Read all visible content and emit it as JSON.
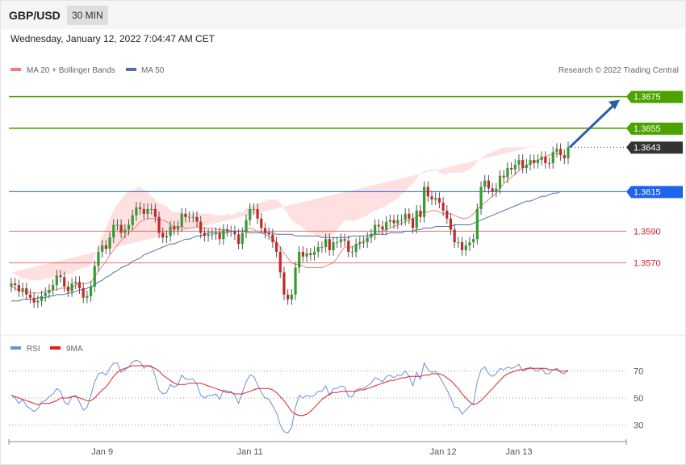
{
  "header": {
    "pair": "GBP/USD",
    "interval": "30 MIN"
  },
  "datetime": "Wednesday, January 12, 2022 7:04:47 AM CET",
  "legend": {
    "ma20": "MA 20 + Bollinger Bands",
    "ma50": "MA 50",
    "credit": "Research © 2022 Trading Central",
    "rsi": "RSI",
    "rsi_ma": "9MA"
  },
  "colors": {
    "target": "#4ca300",
    "last": "#333333",
    "pivot": "#1e64ea",
    "support": "#e05050",
    "band": "#ffe0e0",
    "ma20": "#f08080",
    "ma50": "#5470a8",
    "up": "#2f9e2f",
    "down": "#c62828",
    "rsi": "#6a8fdc",
    "rsi_ma": "#e02020",
    "arrow": "#2d5fa7"
  },
  "chart_data": [
    {
      "type": "candlestick",
      "title": "GBP/USD",
      "interval": "30 MIN",
      "y_range": [
        1.3527,
        1.3685
      ],
      "x_labels": [
        "Jan 9",
        "Jan 11",
        "Jan 12",
        "Jan 13"
      ],
      "levels": [
        {
          "value": 1.3675,
          "label": "1.3675",
          "kind": "target"
        },
        {
          "value": 1.3655,
          "label": "1.3655",
          "kind": "target"
        },
        {
          "value": 1.3643,
          "label": "1.3643",
          "kind": "last"
        },
        {
          "value": 1.3615,
          "label": "1.3615",
          "kind": "pivot"
        },
        {
          "value": 1.359,
          "label": "1.3590",
          "kind": "support"
        },
        {
          "value": 1.357,
          "label": "1.3570",
          "kind": "support"
        }
      ],
      "closes": [
        1.3557,
        1.3556,
        1.3552,
        1.3554,
        1.355,
        1.3548,
        1.3545,
        1.3546,
        1.3549,
        1.3551,
        1.3553,
        1.3556,
        1.3562,
        1.3561,
        1.3555,
        1.3552,
        1.3557,
        1.3558,
        1.3554,
        1.3548,
        1.3549,
        1.3555,
        1.3568,
        1.3577,
        1.3581,
        1.3579,
        1.3586,
        1.3594,
        1.3594,
        1.3589,
        1.3591,
        1.3594,
        1.36,
        1.3605,
        1.3604,
        1.3601,
        1.3604,
        1.3604,
        1.3599,
        1.3589,
        1.3586,
        1.3587,
        1.3593,
        1.3591,
        1.3593,
        1.3601,
        1.3599,
        1.3599,
        1.3599,
        1.3596,
        1.3589,
        1.3587,
        1.3588,
        1.3588,
        1.3589,
        1.3585,
        1.3591,
        1.359,
        1.359,
        1.3588,
        1.3582,
        1.3589,
        1.3597,
        1.3604,
        1.3604,
        1.3598,
        1.3592,
        1.3589,
        1.3588,
        1.3583,
        1.3577,
        1.3564,
        1.355,
        1.3547,
        1.355,
        1.3567,
        1.3577,
        1.3574,
        1.3576,
        1.3575,
        1.3577,
        1.358,
        1.358,
        1.3585,
        1.3578,
        1.3583,
        1.3583,
        1.3585,
        1.3584,
        1.3577,
        1.3577,
        1.3582,
        1.3583,
        1.3583,
        1.3586,
        1.3588,
        1.3594,
        1.3593,
        1.3591,
        1.3596,
        1.3597,
        1.3595,
        1.3597,
        1.3597,
        1.3601,
        1.3598,
        1.3592,
        1.3603,
        1.3599,
        1.3618,
        1.3612,
        1.361,
        1.3611,
        1.3608,
        1.3603,
        1.3598,
        1.3591,
        1.3583,
        1.3583,
        1.3578,
        1.3581,
        1.3583,
        1.3585,
        1.3604,
        1.3618,
        1.3622,
        1.3617,
        1.3615,
        1.3617,
        1.3625,
        1.3624,
        1.363,
        1.3629,
        1.3632,
        1.3635,
        1.363,
        1.3632,
        1.3635,
        1.3633,
        1.3635,
        1.3637,
        1.3633,
        1.3633,
        1.364,
        1.3642,
        1.3638,
        1.3636,
        1.3643
      ],
      "ma20": [
        1.3555,
        1.3554,
        1.3552,
        1.3552,
        1.3552,
        1.3551,
        1.3551,
        1.3551,
        1.3551,
        1.3552,
        1.3552,
        1.3553,
        1.3553,
        1.3554,
        1.3554,
        1.3554,
        1.3554,
        1.3556,
        1.3557,
        1.3557,
        1.3557,
        1.3558,
        1.3561,
        1.3565,
        1.3568,
        1.3571,
        1.3575,
        1.3578,
        1.3581,
        1.3584,
        1.3587,
        1.3589,
        1.3591,
        1.3593,
        1.3596,
        1.3597,
        1.3598,
        1.3598,
        1.3598,
        1.3597,
        1.3597,
        1.3596,
        1.3594,
        1.3593,
        1.3593,
        1.3593,
        1.3592,
        1.3592,
        1.3592,
        1.3593,
        1.3592,
        1.3592,
        1.3592,
        1.3592,
        1.3591,
        1.3591,
        1.3591,
        1.3591,
        1.359,
        1.359,
        1.359,
        1.359,
        1.3591,
        1.3592,
        1.3591,
        1.359,
        1.3589,
        1.3588,
        1.3587,
        1.3585,
        1.3583,
        1.358,
        1.3576,
        1.3573,
        1.357,
        1.3569,
        1.3569,
        1.3568,
        1.3567,
        1.3567,
        1.3567,
        1.3567,
        1.3567,
        1.3568,
        1.3569,
        1.357,
        1.3573,
        1.3577,
        1.358,
        1.358,
        1.358,
        1.3581,
        1.3582,
        1.3584,
        1.3585,
        1.3587,
        1.3588,
        1.3589,
        1.359,
        1.3591,
        1.3592,
        1.3593,
        1.3594,
        1.3595,
        1.3596,
        1.3597,
        1.3598,
        1.3599,
        1.3601,
        1.3602,
        1.3602,
        1.3603,
        1.3603,
        1.3602,
        1.3601,
        1.3601,
        1.3601,
        1.36,
        1.3599,
        1.3598,
        1.3598,
        1.3599,
        1.3601,
        1.3604,
        1.3606,
        1.3608,
        1.361,
        1.3612,
        1.3614,
        1.3617,
        1.362,
        1.3622,
        1.3624,
        1.3626,
        1.3628,
        1.363,
        1.3631,
        1.3633,
        1.3634,
        1.3635,
        1.3636,
        1.3637,
        1.3638,
        1.3639,
        1.3639,
        1.3639
      ],
      "band_width": [
        0.0009,
        0.0009,
        0.0009,
        0.0008,
        0.0008,
        0.0008,
        0.0008,
        0.0008,
        0.0008,
        0.0008,
        0.0008,
        0.0008,
        0.0008,
        0.0008,
        0.0008,
        0.0009,
        0.0009,
        0.0009,
        0.0009,
        0.001,
        0.001,
        0.0011,
        0.0013,
        0.0016,
        0.0019,
        0.0021,
        0.0023,
        0.0025,
        0.0026,
        0.0026,
        0.0026,
        0.0026,
        0.0025,
        0.0024,
        0.0022,
        0.0019,
        0.0017,
        0.0014,
        0.0012,
        0.0011,
        0.001,
        0.001,
        0.0009,
        0.0009,
        0.0009,
        0.0009,
        0.0009,
        0.0009,
        0.0009,
        0.0009,
        0.0009,
        0.0009,
        0.0009,
        0.0009,
        0.0009,
        0.0009,
        0.0009,
        0.001,
        0.001,
        0.0011,
        0.0012,
        0.0012,
        0.0013,
        0.0014,
        0.0015,
        0.0017,
        0.0019,
        0.0021,
        0.0023,
        0.0025,
        0.0027,
        0.0028,
        0.0028,
        0.0028,
        0.0027,
        0.0026,
        0.0025,
        0.0024,
        0.0023,
        0.0022,
        0.0021,
        0.002,
        0.0019,
        0.0018,
        0.0018,
        0.0018,
        0.0018,
        0.0017,
        0.0017,
        0.0017,
        0.0016,
        0.0016,
        0.0016,
        0.0015,
        0.0015,
        0.0015,
        0.0015,
        0.0015,
        0.0015,
        0.0015,
        0.0016,
        0.0016,
        0.0017,
        0.0018,
        0.0019,
        0.0021,
        0.0022,
        0.0024,
        0.0025,
        0.0026,
        0.0026,
        0.0026,
        0.0026,
        0.0025,
        0.0025,
        0.0025,
        0.0026,
        0.0027,
        0.0028,
        0.0029,
        0.003,
        0.003,
        0.003,
        0.003,
        0.003,
        0.003,
        0.0029,
        0.0028,
        0.0027,
        0.0025,
        0.0023,
        0.0021,
        0.0019,
        0.0017,
        0.0015,
        0.0013,
        0.0012,
        0.001,
        0.001,
        0.0009,
        0.0009,
        0.0008,
        0.0008,
        0.0008,
        0.0008
      ],
      "ma50": [
        1.3546,
        1.3546,
        1.3546,
        1.3547,
        1.3547,
        1.3547,
        1.3547,
        1.3548,
        1.3548,
        1.3548,
        1.3549,
        1.3549,
        1.355,
        1.355,
        1.355,
        1.3551,
        1.3551,
        1.3552,
        1.3553,
        1.3553,
        1.3554,
        1.3555,
        1.3556,
        1.3558,
        1.3559,
        1.3561,
        1.3562,
        1.3564,
        1.3565,
        1.3567,
        1.3568,
        1.3569,
        1.3571,
        1.3572,
        1.3573,
        1.3575,
        1.3576,
        1.3577,
        1.3578,
        1.3579,
        1.358,
        1.3581,
        1.3582,
        1.3582,
        1.3583,
        1.3584,
        1.3585,
        1.3585,
        1.3586,
        1.3587,
        1.3587,
        1.3588,
        1.3589,
        1.3589,
        1.3589,
        1.3589,
        1.3589,
        1.3589,
        1.359,
        1.359,
        1.359,
        1.359,
        1.359,
        1.3589,
        1.3589,
        1.3589,
        1.3589,
        1.3589,
        1.3589,
        1.3589,
        1.3588,
        1.3588,
        1.3588,
        1.3588,
        1.3588,
        1.3587,
        1.3587,
        1.3587,
        1.3587,
        1.3587,
        1.3587,
        1.3587,
        1.3586,
        1.3586,
        1.3586,
        1.3586,
        1.3586,
        1.3586,
        1.3586,
        1.3586,
        1.3587,
        1.3587,
        1.3587,
        1.3587,
        1.3587,
        1.3588,
        1.3588,
        1.3588,
        1.3588,
        1.3588,
        1.3589,
        1.3589,
        1.3589,
        1.3589,
        1.359,
        1.359,
        1.359,
        1.3591,
        1.3591,
        1.3592,
        1.3592,
        1.3592,
        1.3593,
        1.3593,
        1.3593,
        1.3593,
        1.3593,
        1.3594,
        1.3594,
        1.3594,
        1.3594,
        1.3594,
        1.3595,
        1.3596,
        1.3597,
        1.3598,
        1.3599,
        1.36,
        1.3601,
        1.3602,
        1.3603,
        1.3604,
        1.3605,
        1.3606,
        1.3607,
        1.3608,
        1.3609,
        1.3609,
        1.361,
        1.3611,
        1.3612,
        1.3612,
        1.3613,
        1.3614,
        1.3614,
        1.3615
      ]
    },
    {
      "type": "line",
      "title": "RSI",
      "y_range": [
        20,
        80
      ],
      "y_ticks": [
        "70",
        "50",
        "30"
      ],
      "series": [
        {
          "name": "RSI",
          "values": [
            52,
            50,
            46,
            49,
            44,
            42,
            40,
            42,
            47,
            48,
            51,
            53,
            57,
            55,
            47,
            45,
            51,
            52,
            47,
            41,
            43,
            52,
            62,
            68,
            69,
            67,
            72,
            76,
            76,
            69,
            71,
            73,
            77,
            78,
            77,
            72,
            74,
            74,
            66,
            56,
            53,
            54,
            60,
            58,
            60,
            67,
            64,
            64,
            64,
            60,
            52,
            50,
            52,
            52,
            53,
            49,
            56,
            55,
            55,
            52,
            46,
            54,
            62,
            67,
            66,
            60,
            54,
            50,
            49,
            44,
            39,
            30,
            25,
            24,
            28,
            43,
            52,
            50,
            52,
            51,
            52,
            55,
            55,
            59,
            52,
            57,
            57,
            59,
            58,
            51,
            51,
            56,
            57,
            57,
            59,
            61,
            65,
            64,
            62,
            66,
            67,
            65,
            67,
            67,
            70,
            66,
            59,
            69,
            64,
            76,
            71,
            69,
            70,
            66,
            61,
            56,
            50,
            43,
            43,
            38,
            41,
            44,
            46,
            62,
            71,
            73,
            68,
            66,
            68,
            72,
            71,
            73,
            72,
            73,
            75,
            70,
            71,
            73,
            71,
            70,
            72,
            68,
            68,
            71,
            72,
            69,
            68,
            71
          ]
        },
        {
          "name": "9MA",
          "values": [
            52,
            51,
            50,
            49,
            48,
            47,
            46,
            45,
            46,
            46,
            46,
            47,
            48,
            50,
            50,
            50,
            51,
            51,
            50,
            49,
            48,
            48,
            50,
            53,
            56,
            58,
            62,
            66,
            69,
            71,
            72,
            73,
            74,
            74,
            74,
            74,
            74,
            73,
            72,
            70,
            67,
            65,
            63,
            61,
            60,
            60,
            60,
            61,
            61,
            61,
            61,
            60,
            59,
            58,
            57,
            56,
            55,
            54,
            54,
            53,
            53,
            53,
            54,
            55,
            56,
            57,
            57,
            57,
            57,
            56,
            54,
            51,
            48,
            44,
            40,
            38,
            37,
            37,
            38,
            40,
            43,
            46,
            49,
            51,
            53,
            54,
            54,
            55,
            55,
            55,
            55,
            55,
            56,
            56,
            57,
            58,
            59,
            60,
            61,
            62,
            63,
            63,
            64,
            65,
            65,
            66,
            66,
            66,
            66,
            67,
            67,
            68,
            68,
            68,
            67,
            65,
            63,
            60,
            57,
            53,
            50,
            47,
            45,
            46,
            48,
            51,
            54,
            57,
            60,
            63,
            66,
            68,
            69,
            70,
            71,
            71,
            72,
            72,
            72,
            72,
            72,
            72,
            71,
            71,
            71,
            70,
            70,
            70
          ]
        }
      ]
    }
  ]
}
